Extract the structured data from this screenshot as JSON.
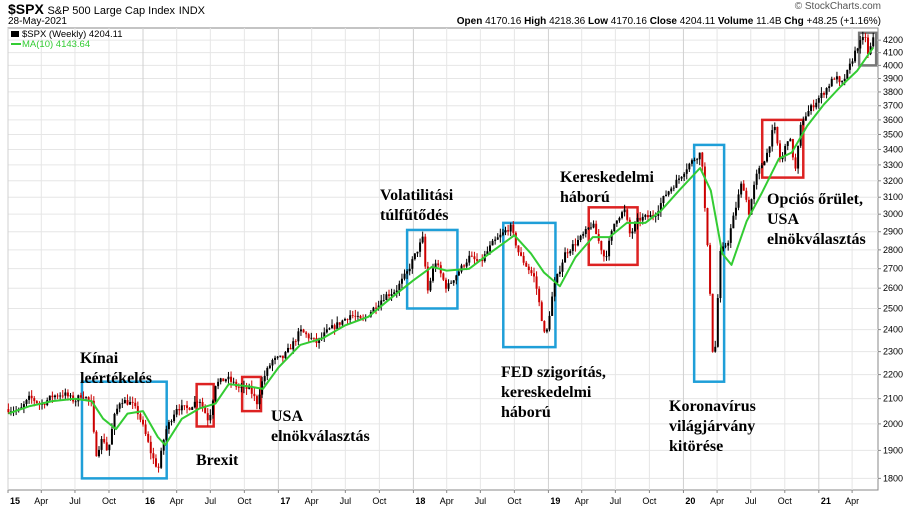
{
  "header": {
    "symbol": "$SPX",
    "name": "S&P 500 Large Cap Index",
    "exchange": "INDX",
    "date": "28-May-2021",
    "watermark": "© StockCharts.com",
    "open_label": "Open",
    "open": "4170.16",
    "high_label": "High",
    "high": "4218.36",
    "low_label": "Low",
    "low": "4170.16",
    "close_label": "Close",
    "close": "4204.11",
    "volume_label": "Volume",
    "volume": "11.4B",
    "chg_label": "Chg",
    "chg": "+48.25 (+1.16%)"
  },
  "legend": {
    "price": "$SPX (Weekly) 4204.11",
    "ma": "MA(10) 4143.64"
  },
  "colors": {
    "up": "#000000",
    "down": "#cc0000",
    "ma": "#33cc33",
    "box_blue": "#1f9fd8",
    "box_red": "#dd2222",
    "box_gray": "#777777",
    "grid": "#e6e6e6"
  },
  "chart_data": {
    "type": "line",
    "title": "$SPX S&P 500 Large Cap Index",
    "x_axis": {
      "type": "date",
      "range": [
        "2015-01-01",
        "2021-06-10"
      ],
      "ticks": [
        {
          "date": "2015-01-01",
          "label": "15",
          "major": true
        },
        {
          "date": "2015-04-01",
          "label": "Apr"
        },
        {
          "date": "2015-07-01",
          "label": "Jul"
        },
        {
          "date": "2015-10-01",
          "label": "Oct"
        },
        {
          "date": "2016-01-01",
          "label": "16",
          "major": true
        },
        {
          "date": "2016-04-01",
          "label": "Apr"
        },
        {
          "date": "2016-07-01",
          "label": "Jul"
        },
        {
          "date": "2016-10-01",
          "label": "Oct"
        },
        {
          "date": "2017-01-01",
          "label": "17",
          "major": true
        },
        {
          "date": "2017-04-01",
          "label": "Apr"
        },
        {
          "date": "2017-07-01",
          "label": "Jul"
        },
        {
          "date": "2017-10-01",
          "label": "Oct"
        },
        {
          "date": "2018-01-01",
          "label": "18",
          "major": true
        },
        {
          "date": "2018-04-01",
          "label": "Apr"
        },
        {
          "date": "2018-07-01",
          "label": "Jul"
        },
        {
          "date": "2018-10-01",
          "label": "Oct"
        },
        {
          "date": "2019-01-01",
          "label": "19",
          "major": true
        },
        {
          "date": "2019-04-01",
          "label": "Apr"
        },
        {
          "date": "2019-07-01",
          "label": "Jul"
        },
        {
          "date": "2019-10-01",
          "label": "Oct"
        },
        {
          "date": "2020-01-01",
          "label": "20",
          "major": true
        },
        {
          "date": "2020-04-01",
          "label": "Apr"
        },
        {
          "date": "2020-07-01",
          "label": "Jul"
        },
        {
          "date": "2020-10-01",
          "label": "Oct"
        },
        {
          "date": "2021-01-01",
          "label": "21",
          "major": true
        },
        {
          "date": "2021-04-01",
          "label": "Apr"
        }
      ]
    },
    "y_axis": {
      "position": "right",
      "scale": "log",
      "range": [
        1760,
        4300
      ],
      "ticks": [
        1800,
        1900,
        2000,
        2100,
        2200,
        2300,
        2400,
        2500,
        2600,
        2700,
        2800,
        2900,
        3000,
        3100,
        3200,
        3300,
        3400,
        3500,
        3600,
        3700,
        3800,
        3900,
        4000,
        4100,
        4200
      ]
    },
    "grid": true,
    "legend_position": "top-left",
    "series": [
      {
        "name": "$SPX (Weekly)",
        "style": "candlestick-approx",
        "points": [
          [
            "2015-01-02",
            2058
          ],
          [
            "2015-02-01",
            2050
          ],
          [
            "2015-03-01",
            2105
          ],
          [
            "2015-04-01",
            2075
          ],
          [
            "2015-05-01",
            2110
          ],
          [
            "2015-06-01",
            2120
          ],
          [
            "2015-07-01",
            2090
          ],
          [
            "2015-07-20",
            2120
          ],
          [
            "2015-08-15",
            2080
          ],
          [
            "2015-08-25",
            1880
          ],
          [
            "2015-09-15",
            1950
          ],
          [
            "2015-09-28",
            1890
          ],
          [
            "2015-10-15",
            2025
          ],
          [
            "2015-11-01",
            2095
          ],
          [
            "2015-12-01",
            2080
          ],
          [
            "2015-12-20",
            2040
          ],
          [
            "2016-01-10",
            1950
          ],
          [
            "2016-01-25",
            1880
          ],
          [
            "2016-02-11",
            1830
          ],
          [
            "2016-03-01",
            1970
          ],
          [
            "2016-04-01",
            2065
          ],
          [
            "2016-05-01",
            2060
          ],
          [
            "2016-06-01",
            2100
          ],
          [
            "2016-06-27",
            2010
          ],
          [
            "2016-07-15",
            2160
          ],
          [
            "2016-08-15",
            2185
          ],
          [
            "2016-09-15",
            2145
          ],
          [
            "2016-10-15",
            2140
          ],
          [
            "2016-11-04",
            2085
          ],
          [
            "2016-11-20",
            2180
          ],
          [
            "2016-12-15",
            2260
          ],
          [
            "2017-01-15",
            2275
          ],
          [
            "2017-02-15",
            2350
          ],
          [
            "2017-03-01",
            2395
          ],
          [
            "2017-04-15",
            2340
          ],
          [
            "2017-05-15",
            2395
          ],
          [
            "2017-06-15",
            2430
          ],
          [
            "2017-07-15",
            2470
          ],
          [
            "2017-08-15",
            2440
          ],
          [
            "2017-09-15",
            2500
          ],
          [
            "2017-10-15",
            2560
          ],
          [
            "2017-11-15",
            2590
          ],
          [
            "2017-12-15",
            2680
          ],
          [
            "2018-01-26",
            2860
          ],
          [
            "2018-02-08",
            2580
          ],
          [
            "2018-03-01",
            2740
          ],
          [
            "2018-04-01",
            2600
          ],
          [
            "2018-05-01",
            2680
          ],
          [
            "2018-06-01",
            2760
          ],
          [
            "2018-07-01",
            2730
          ],
          [
            "2018-08-01",
            2830
          ],
          [
            "2018-09-20",
            2930
          ],
          [
            "2018-10-15",
            2770
          ],
          [
            "2018-11-01",
            2720
          ],
          [
            "2018-11-25",
            2650
          ],
          [
            "2018-12-24",
            2350
          ],
          [
            "2019-01-15",
            2600
          ],
          [
            "2019-02-15",
            2780
          ],
          [
            "2019-04-01",
            2870
          ],
          [
            "2019-04-30",
            2945
          ],
          [
            "2019-05-20",
            2830
          ],
          [
            "2019-06-03",
            2750
          ],
          [
            "2019-07-01",
            2970
          ],
          [
            "2019-07-26",
            3020
          ],
          [
            "2019-08-10",
            2880
          ],
          [
            "2019-09-01",
            2970
          ],
          [
            "2019-10-15",
            2995
          ],
          [
            "2019-11-15",
            3120
          ],
          [
            "2019-12-15",
            3200
          ],
          [
            "2020-01-15",
            3300
          ],
          [
            "2020-02-19",
            3385
          ],
          [
            "2020-03-01",
            2950
          ],
          [
            "2020-03-10",
            2700
          ],
          [
            "2020-03-23",
            2190
          ],
          [
            "2020-04-10",
            2780
          ],
          [
            "2020-05-01",
            2850
          ],
          [
            "2020-06-08",
            3200
          ],
          [
            "2020-06-26",
            3010
          ],
          [
            "2020-07-15",
            3220
          ],
          [
            "2020-08-15",
            3380
          ],
          [
            "2020-09-02",
            3560
          ],
          [
            "2020-09-20",
            3310
          ],
          [
            "2020-10-12",
            3500
          ],
          [
            "2020-10-30",
            3270
          ],
          [
            "2020-11-15",
            3590
          ],
          [
            "2020-12-15",
            3700
          ],
          [
            "2021-01-15",
            3800
          ],
          [
            "2021-02-15",
            3920
          ],
          [
            "2021-03-01",
            3840
          ],
          [
            "2021-03-20",
            3950
          ],
          [
            "2021-04-15",
            4150
          ],
          [
            "2021-05-07",
            4230
          ],
          [
            "2021-05-12",
            4060
          ],
          [
            "2021-05-28",
            4204
          ]
        ]
      },
      {
        "name": "MA(10)",
        "style": "line",
        "points": [
          [
            "2015-01-02",
            2040
          ],
          [
            "2015-03-01",
            2070
          ],
          [
            "2015-05-01",
            2090
          ],
          [
            "2015-07-01",
            2100
          ],
          [
            "2015-08-15",
            2090
          ],
          [
            "2015-09-15",
            2020
          ],
          [
            "2015-10-20",
            1980
          ],
          [
            "2015-11-20",
            2040
          ],
          [
            "2016-01-01",
            2050
          ],
          [
            "2016-02-10",
            1950
          ],
          [
            "2016-03-01",
            1920
          ],
          [
            "2016-04-15",
            2020
          ],
          [
            "2016-06-01",
            2060
          ],
          [
            "2016-07-15",
            2080
          ],
          [
            "2016-08-20",
            2160
          ],
          [
            "2016-10-15",
            2150
          ],
          [
            "2016-11-20",
            2140
          ],
          [
            "2017-01-01",
            2230
          ],
          [
            "2017-03-01",
            2330
          ],
          [
            "2017-05-01",
            2360
          ],
          [
            "2017-07-01",
            2420
          ],
          [
            "2017-09-01",
            2460
          ],
          [
            "2017-11-01",
            2550
          ],
          [
            "2018-01-01",
            2640
          ],
          [
            "2018-02-20",
            2710
          ],
          [
            "2018-04-01",
            2690
          ],
          [
            "2018-06-01",
            2700
          ],
          [
            "2018-08-01",
            2790
          ],
          [
            "2018-10-01",
            2880
          ],
          [
            "2018-11-15",
            2780
          ],
          [
            "2018-12-20",
            2680
          ],
          [
            "2019-02-01",
            2610
          ],
          [
            "2019-03-15",
            2760
          ],
          [
            "2019-05-01",
            2870
          ],
          [
            "2019-06-15",
            2870
          ],
          [
            "2019-08-01",
            2950
          ],
          [
            "2019-09-20",
            2950
          ],
          [
            "2019-11-01",
            3020
          ],
          [
            "2019-12-20",
            3140
          ],
          [
            "2020-02-15",
            3280
          ],
          [
            "2020-03-15",
            3140
          ],
          [
            "2020-04-15",
            2780
          ],
          [
            "2020-05-10",
            2720
          ],
          [
            "2020-06-20",
            2960
          ],
          [
            "2020-08-01",
            3130
          ],
          [
            "2020-09-15",
            3340
          ],
          [
            "2020-10-20",
            3380
          ],
          [
            "2020-12-01",
            3560
          ],
          [
            "2021-01-15",
            3710
          ],
          [
            "2021-03-01",
            3840
          ],
          [
            "2021-04-15",
            3960
          ],
          [
            "2021-05-28",
            4140
          ]
        ]
      }
    ],
    "annotations": [
      {
        "label": [
          "Kínai",
          "leértékelés"
        ],
        "box_color": "blue",
        "range": [
          "2015-07-20",
          "2016-03-05"
        ],
        "y_range": [
          1800,
          2170
        ]
      },
      {
        "label": [
          "Brexit"
        ],
        "box_color": "red",
        "range": [
          "2016-05-25",
          "2016-07-10"
        ],
        "y_range": [
          1990,
          2160
        ]
      },
      {
        "label": [
          "USA",
          "elnökválasztás"
        ],
        "box_color": "red",
        "range": [
          "2016-09-25",
          "2016-11-15"
        ],
        "y_range": [
          2050,
          2190
        ]
      },
      {
        "label": [
          "Volatilitási",
          "túlfűtődés"
        ],
        "box_color": "blue",
        "range": [
          "2017-12-15",
          "2018-04-30"
        ],
        "y_range": [
          2500,
          2910
        ]
      },
      {
        "label": [
          "FED szigorítás,",
          "kereskedelmi",
          "háború"
        ],
        "box_color": "blue",
        "range": [
          "2018-09-01",
          "2019-01-20"
        ],
        "y_range": [
          2320,
          2950
        ]
      },
      {
        "label": [
          "Kereskedelmi",
          "háború"
        ],
        "box_color": "red",
        "range": [
          "2019-04-20",
          "2019-08-30"
        ],
        "y_range": [
          2720,
          3040
        ]
      },
      {
        "label": [
          "Koronavírus",
          "világjárvány",
          "kitörése"
        ],
        "box_color": "blue",
        "range": [
          "2020-01-30",
          "2020-04-20"
        ],
        "y_range": [
          2170,
          3430
        ]
      },
      {
        "label": [
          "Opciós őrület,",
          "USA",
          "elnökválasztás"
        ],
        "box_color": "red",
        "range": [
          "2020-08-01",
          "2020-11-20"
        ],
        "y_range": [
          3220,
          3600
        ]
      },
      {
        "label": [],
        "box_color": "gray",
        "range": [
          "2021-04-20",
          "2021-06-05"
        ],
        "y_range": [
          4000,
          4260
        ]
      }
    ]
  }
}
